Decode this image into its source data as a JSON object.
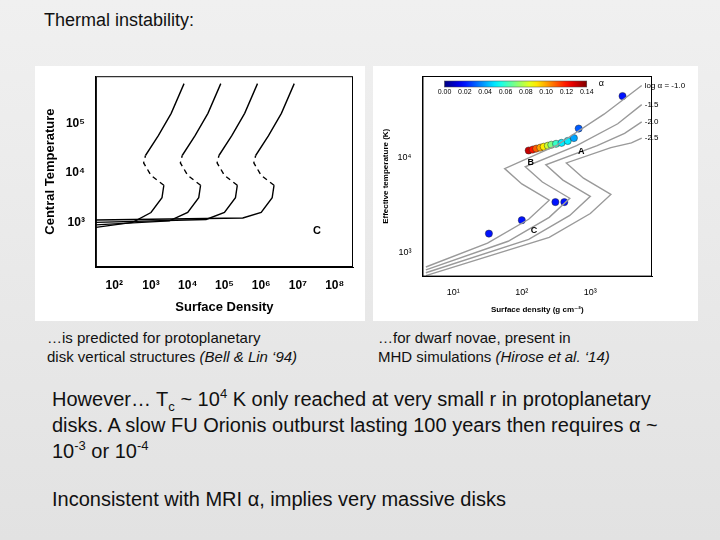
{
  "slide": {
    "title": "Thermal instability:",
    "captions": [
      {
        "lines": [
          "…is predicted for protoplanetary",
          "disk vertical structures"
        ],
        "cite": "(Bell & Lin ‘94)"
      },
      {
        "lines": [
          "…for dwarf novae, present in",
          "MHD simulations"
        ],
        "cite": "(Hirose et al. ‘14)"
      }
    ],
    "paragraphs": [
      [
        {
          "t": "However… T"
        },
        {
          "sub": "c"
        },
        {
          "t": " ~ 10"
        },
        {
          "sup": "4"
        },
        {
          "t": " K only reached at very small r in protoplanetary disks. A slow FU Orionis outburst lasting 100 years then requires α ~ 10"
        },
        {
          "sup": "-3"
        },
        {
          "t": " or 10"
        },
        {
          "sup": "-4"
        }
      ],
      [
        {
          "t": "Inconsistent with MRI α, implies very massive disks"
        }
      ]
    ]
  },
  "chart_data": [
    {
      "type": "line",
      "xlabel": "Surface Density",
      "ylabel": "Central Temperature",
      "log": true,
      "grid": false,
      "xlim": [
        31.6,
        316228000
      ],
      "ylim": [
        126,
        891251
      ],
      "xticks": [
        {
          "value": 100,
          "label": "10²"
        },
        {
          "value": 1000,
          "label": "10³"
        },
        {
          "value": 10000,
          "label": "10⁴"
        },
        {
          "value": 100000,
          "label": "10⁵"
        },
        {
          "value": 1000000,
          "label": "10⁶"
        },
        {
          "value": 10000000,
          "label": "10⁷"
        },
        {
          "value": 100000000,
          "label": "10⁸"
        }
      ],
      "yticks": [
        {
          "value": 1000,
          "label": "10³"
        },
        {
          "value": 10000,
          "label": "10⁴"
        },
        {
          "value": 100000,
          "label": "10⁵"
        }
      ],
      "series": [
        {
          "x": [
            31.6,
            316,
            1000,
            1995,
            2239
          ],
          "values": [
            794,
            1000,
            1585,
            3162,
            5623
          ],
          "color": "#000000",
          "line_style": "solid"
        },
        {
          "x": [
            2239,
            1000,
            631,
            708
          ],
          "values": [
            5623,
            8913,
            15849,
            22387
          ],
          "color": "#000000",
          "line_style": "dashed"
        },
        {
          "x": [
            708,
            1585,
            3548,
            7943
          ],
          "values": [
            22387,
            56234,
            158489,
            630957
          ],
          "color": "#000000",
          "line_style": "solid"
        },
        {
          "x": [
            31.6,
            3162,
            10000,
            19953,
            22387
          ],
          "values": [
            891,
            1072,
            1585,
            3162,
            5623
          ],
          "color": "#000000",
          "line_style": "solid"
        },
        {
          "x": [
            22387,
            10000,
            6310,
            7079
          ],
          "values": [
            5623,
            8913,
            15849,
            22387
          ],
          "color": "#000000",
          "line_style": "dashed"
        },
        {
          "x": [
            7079,
            15849,
            35481,
            79433
          ],
          "values": [
            22387,
            56234,
            158489,
            630957
          ],
          "color": "#000000",
          "line_style": "solid"
        },
        {
          "x": [
            31.6,
            31623,
            100000,
            199526,
            223872
          ],
          "values": [
            1000,
            1148,
            1585,
            3162,
            5623
          ],
          "color": "#000000",
          "line_style": "solid"
        },
        {
          "x": [
            223872,
            100000,
            63096,
            70795
          ],
          "values": [
            5623,
            8913,
            15849,
            22387
          ],
          "color": "#000000",
          "line_style": "dashed"
        },
        {
          "x": [
            70795,
            158489,
            354813,
            794328
          ],
          "values": [
            22387,
            56234,
            158489,
            630957
          ],
          "color": "#000000",
          "line_style": "solid"
        },
        {
          "x": [
            31.6,
            316228,
            1000000,
            1995262,
            2238721
          ],
          "values": [
            1122,
            1230,
            1585,
            3162,
            5623
          ],
          "color": "#000000",
          "line_style": "solid"
        },
        {
          "x": [
            2238721,
            1000000,
            630957,
            707946
          ],
          "values": [
            5623,
            8913,
            15849,
            22387
          ],
          "color": "#000000",
          "line_style": "dashed"
        },
        {
          "x": [
            707946,
            1584893,
            3548134,
            7943282
          ],
          "values": [
            22387,
            56234,
            158489,
            630957
          ],
          "color": "#000000",
          "line_style": "solid"
        }
      ],
      "annotations": [
        {
          "text": "C",
          "x": 33000000,
          "y": 660
        }
      ]
    },
    {
      "type": "scatter",
      "xlabel": "Surface density (g cm⁻²)",
      "ylabel": "Effective temperature (K)",
      "log": true,
      "grid": false,
      "xlim": [
        3.55,
        7943
      ],
      "ylim": [
        562,
        70795
      ],
      "xticks": [
        {
          "value": 10,
          "label": "10¹"
        },
        {
          "value": 100,
          "label": "10²"
        },
        {
          "value": 1000,
          "label": "10³"
        }
      ],
      "yticks": [
        {
          "value": 1000,
          "label": "10³"
        },
        {
          "value": 10000,
          "label": "10⁴"
        }
      ],
      "series": [
        {
          "type": "line",
          "x": [
            3.98,
            31.6,
            125.9,
            251.2,
            100,
            56.2,
            316.2,
            1585,
            5623
          ],
          "values": [
            708,
            1259,
            2239,
            3548,
            5248,
            7586,
            13183,
            28184,
            56234
          ],
          "color": "#9a9a9a",
          "line_style": "solid",
          "end_label": "log α = -1.0"
        },
        {
          "type": "line",
          "x": [
            3.98,
            63.1,
            251.2,
            501.2,
            199.5,
            112.2,
            631,
            2512,
            5623
          ],
          "values": [
            661,
            1318,
            2344,
            3715,
            5495,
            7943,
            13183,
            22387,
            35481
          ],
          "color": "#9a9a9a",
          "line_style": "solid",
          "end_label": "-1.5"
        },
        {
          "type": "line",
          "x": [
            3.98,
            125.9,
            501.2,
            1000,
            398.1,
            223.9,
            1259,
            3162,
            5623
          ],
          "values": [
            617,
            1380,
            2455,
            3890,
            5754,
            8318,
            13183,
            17783,
            23442
          ],
          "color": "#9a9a9a",
          "line_style": "solid",
          "end_label": "-2.0"
        },
        {
          "type": "line",
          "x": [
            3.98,
            251.2,
            1000,
            1995,
            794.3,
            446.7,
            1995,
            3981,
            5623
          ],
          "values": [
            575,
            1445,
            2570,
            4074,
            6026,
            8710,
            12589,
            14125,
            15849
          ],
          "color": "#9a9a9a",
          "line_style": "solid",
          "end_label": "-2.5"
        },
        {
          "type": "scatter",
          "marker": "circle",
          "x": [
            33.1,
            100,
            309,
            417,
            125.9,
            144.5,
            162.2,
            186.2,
            208.9,
            239.9,
            269.2,
            316.2,
            380.2,
            467.7,
            575.4,
            676.1,
            2951
          ],
          "values": [
            1585,
            2188,
            3388,
            3388,
            11749,
            12023,
            12303,
            12589,
            12882,
            13183,
            13490,
            13804,
            14125,
            14791,
            15849,
            19953,
            43652
          ],
          "alpha": [
            0.02,
            0.02,
            0.02,
            0.02,
            0.13,
            0.12,
            0.11,
            0.1,
            0.09,
            0.08,
            0.07,
            0.06,
            0.05,
            0.05,
            0.04,
            0.03,
            0.02
          ]
        }
      ],
      "colorbar": {
        "label": "α",
        "range": [
          0,
          0.14
        ],
        "ticks": [
          {
            "value": 0,
            "label": "0.00"
          },
          0.02,
          0.04,
          0.06,
          0.08,
          {
            "value": 0.1,
            "label": "0.10"
          },
          0.12,
          0.14
        ]
      },
      "annotations": [
        {
          "text": "A",
          "x": 740,
          "y": 11500
        },
        {
          "text": "B",
          "x": 135,
          "y": 8700
        },
        {
          "text": "C",
          "x": 150,
          "y": 1700
        }
      ]
    }
  ]
}
